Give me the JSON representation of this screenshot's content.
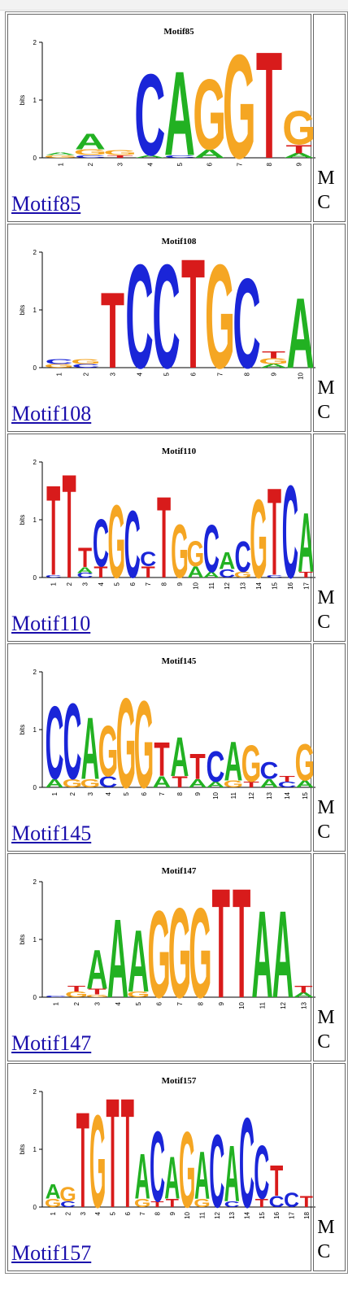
{
  "rows": [
    {
      "title": "Motif85",
      "link": "Motif85",
      "side": [
        "M",
        "C"
      ],
      "columns": [
        [
          {
            "l": "G",
            "h": 0.05
          },
          {
            "l": "A",
            "h": 0.05
          }
        ],
        [
          {
            "l": "A",
            "h": 0.28
          },
          {
            "l": "G",
            "h": 0.1
          },
          {
            "l": "C",
            "h": 0.05
          }
        ],
        [
          {
            "l": "G",
            "h": 0.08
          },
          {
            "l": "T",
            "h": 0.05
          }
        ],
        [
          {
            "l": "C",
            "h": 1.45
          },
          {
            "l": "A",
            "h": 0.05
          }
        ],
        [
          {
            "l": "A",
            "h": 1.5
          },
          {
            "l": "C",
            "h": 0.05
          }
        ],
        [
          {
            "l": "G",
            "h": 1.25
          },
          {
            "l": "A",
            "h": 0.15
          }
        ],
        [
          {
            "l": "G",
            "h": 1.85
          }
        ],
        [
          {
            "l": "T",
            "h": 1.9
          }
        ],
        [
          {
            "l": "G",
            "h": 0.6
          },
          {
            "l": "T",
            "h": 0.15
          },
          {
            "l": "A",
            "h": 0.08
          }
        ]
      ],
      "xticks": [
        "1",
        "2",
        "3",
        "4",
        "5",
        "6",
        "7",
        "8",
        "9"
      ]
    },
    {
      "title": "Motif108",
      "link": "Motif108",
      "side": [
        "M",
        "C"
      ],
      "columns": [
        [
          {
            "l": "C",
            "h": 0.08
          },
          {
            "l": "G",
            "h": 0.06
          }
        ],
        [
          {
            "l": "G",
            "h": 0.08
          },
          {
            "l": "C",
            "h": 0.06
          }
        ],
        [
          {
            "l": "T",
            "h": 1.35
          }
        ],
        [
          {
            "l": "C",
            "h": 1.85
          }
        ],
        [
          {
            "l": "C",
            "h": 1.85
          }
        ],
        [
          {
            "l": "T",
            "h": 1.95
          }
        ],
        [
          {
            "l": "G",
            "h": 1.85
          }
        ],
        [
          {
            "l": "C",
            "h": 1.6
          }
        ],
        [
          {
            "l": "T",
            "h": 0.12
          },
          {
            "l": "G",
            "h": 0.1
          },
          {
            "l": "A",
            "h": 0.06
          }
        ],
        [
          {
            "l": "A",
            "h": 1.25
          }
        ]
      ],
      "xticks": [
        "1",
        "2",
        "3",
        "4",
        "5",
        "6",
        "7",
        "8",
        "9",
        "10"
      ]
    },
    {
      "title": "Motif110",
      "link": "Motif110",
      "side": [
        "M",
        "C"
      ],
      "columns": [
        [
          {
            "l": "T",
            "h": 1.6
          },
          {
            "l": "C",
            "h": 0.05
          }
        ],
        [
          {
            "l": "T",
            "h": 1.85
          }
        ],
        [
          {
            "l": "T",
            "h": 0.35
          },
          {
            "l": "A",
            "h": 0.1
          },
          {
            "l": "C",
            "h": 0.08
          }
        ],
        [
          {
            "l": "C",
            "h": 0.85
          },
          {
            "l": "T",
            "h": 0.2
          }
        ],
        [
          {
            "l": "G",
            "h": 1.3
          }
        ],
        [
          {
            "l": "C",
            "h": 1.2
          }
        ],
        [
          {
            "l": "C",
            "h": 0.25
          },
          {
            "l": "T",
            "h": 0.2
          }
        ],
        [
          {
            "l": "T",
            "h": 1.45
          }
        ],
        [
          {
            "l": "G",
            "h": 0.95
          }
        ],
        [
          {
            "l": "G",
            "h": 0.45
          },
          {
            "l": "A",
            "h": 0.2
          }
        ],
        [
          {
            "l": "C",
            "h": 0.85
          },
          {
            "l": "A",
            "h": 0.1
          }
        ],
        [
          {
            "l": "A",
            "h": 0.3
          },
          {
            "l": "C",
            "h": 0.15
          }
        ],
        [
          {
            "l": "C",
            "h": 0.55
          },
          {
            "l": "G",
            "h": 0.1
          }
        ],
        [
          {
            "l": "G",
            "h": 1.4
          }
        ],
        [
          {
            "l": "T",
            "h": 1.55
          },
          {
            "l": "C",
            "h": 0.05
          }
        ],
        [
          {
            "l": "C",
            "h": 1.65
          }
        ],
        [
          {
            "l": "A",
            "h": 1.05
          },
          {
            "l": "T",
            "h": 0.1
          }
        ]
      ],
      "xticks": [
        "1",
        "2",
        "3",
        "4",
        "5",
        "6",
        "7",
        "8",
        "9",
        "10",
        "11",
        "12",
        "13",
        "14",
        "15",
        "16",
        "17"
      ]
    },
    {
      "title": "Motif145",
      "link": "Motif145",
      "side": [
        "M",
        "C"
      ],
      "columns": [
        [
          {
            "l": "C",
            "h": 1.3
          },
          {
            "l": "A",
            "h": 0.15
          }
        ],
        [
          {
            "l": "C",
            "h": 1.35
          },
          {
            "l": "G",
            "h": 0.15
          }
        ],
        [
          {
            "l": "A",
            "h": 1.1
          },
          {
            "l": "G",
            "h": 0.15
          }
        ],
        [
          {
            "l": "G",
            "h": 0.9
          },
          {
            "l": "C",
            "h": 0.2
          }
        ],
        [
          {
            "l": "G",
            "h": 1.6
          }
        ],
        [
          {
            "l": "G",
            "h": 1.55
          }
        ],
        [
          {
            "l": "T",
            "h": 0.6
          },
          {
            "l": "A",
            "h": 0.2
          }
        ],
        [
          {
            "l": "A",
            "h": 0.7
          },
          {
            "l": "T",
            "h": 0.2
          }
        ],
        [
          {
            "l": "T",
            "h": 0.45
          },
          {
            "l": "A",
            "h": 0.15
          }
        ],
        [
          {
            "l": "C",
            "h": 0.55
          },
          {
            "l": "A",
            "h": 0.1
          }
        ],
        [
          {
            "l": "A",
            "h": 0.7
          },
          {
            "l": "G",
            "h": 0.12
          }
        ],
        [
          {
            "l": "G",
            "h": 0.65
          },
          {
            "l": "T",
            "h": 0.1
          }
        ],
        [
          {
            "l": "C",
            "h": 0.3
          },
          {
            "l": "A",
            "h": 0.15
          }
        ],
        [
          {
            "l": "C",
            "h": 0.1
          },
          {
            "l": "T",
            "h": 0.1
          }
        ],
        [
          {
            "l": "G",
            "h": 0.65
          },
          {
            "l": "A",
            "h": 0.12
          }
        ]
      ],
      "xticks": [
        "1",
        "2",
        "3",
        "4",
        "5",
        "6",
        "7",
        "8",
        "9",
        "10",
        "11",
        "12",
        "13",
        "14",
        "15"
      ]
    },
    {
      "title": "Motif147",
      "link": "Motif147",
      "side": [
        "M",
        "C"
      ],
      "columns": [
        [
          {
            "l": "C",
            "h": 0.02
          }
        ],
        [
          {
            "l": "G",
            "h": 0.1
          },
          {
            "l": "T",
            "h": 0.1
          }
        ],
        [
          {
            "l": "A",
            "h": 0.7
          },
          {
            "l": "T",
            "h": 0.1
          },
          {
            "l": "G",
            "h": 0.05
          }
        ],
        [
          {
            "l": "A",
            "h": 1.4
          }
        ],
        [
          {
            "l": "A",
            "h": 1.1
          },
          {
            "l": "G",
            "h": 0.1
          }
        ],
        [
          {
            "l": "G",
            "h": 1.55
          }
        ],
        [
          {
            "l": "G",
            "h": 1.6
          }
        ],
        [
          {
            "l": "G",
            "h": 1.6
          }
        ],
        [
          {
            "l": "T",
            "h": 1.95
          }
        ],
        [
          {
            "l": "T",
            "h": 1.95
          }
        ],
        [
          {
            "l": "A",
            "h": 1.55
          }
        ],
        [
          {
            "l": "A",
            "h": 1.55
          }
        ],
        [
          {
            "l": "T",
            "h": 0.12
          },
          {
            "l": "A",
            "h": 0.08
          }
        ]
      ],
      "xticks": [
        "1",
        "2",
        "3",
        "4",
        "5",
        "6",
        "7",
        "8",
        "9",
        "10",
        "11",
        "12",
        "13"
      ]
    },
    {
      "title": "Motif157",
      "link": "Motif157",
      "side": [
        "M",
        "C"
      ],
      "columns": [
        [
          {
            "l": "A",
            "h": 0.25
          },
          {
            "l": "G",
            "h": 0.15
          }
        ],
        [
          {
            "l": "G",
            "h": 0.25
          },
          {
            "l": "C",
            "h": 0.1
          }
        ],
        [
          {
            "l": "T",
            "h": 1.7
          }
        ],
        [
          {
            "l": "G",
            "h": 1.65
          }
        ],
        [
          {
            "l": "T",
            "h": 1.95
          }
        ],
        [
          {
            "l": "T",
            "h": 1.95
          }
        ],
        [
          {
            "l": "A",
            "h": 0.8
          },
          {
            "l": "G",
            "h": 0.15
          }
        ],
        [
          {
            "l": "C",
            "h": 1.25
          },
          {
            "l": "T",
            "h": 0.1
          }
        ],
        [
          {
            "l": "A",
            "h": 0.75
          },
          {
            "l": "T",
            "h": 0.15
          }
        ],
        [
          {
            "l": "G",
            "h": 1.35
          }
        ],
        [
          {
            "l": "A",
            "h": 0.85
          },
          {
            "l": "G",
            "h": 0.15
          }
        ],
        [
          {
            "l": "C",
            "h": 1.3
          }
        ],
        [
          {
            "l": "A",
            "h": 1.0
          },
          {
            "l": "C",
            "h": 0.1
          }
        ],
        [
          {
            "l": "C",
            "h": 1.6
          }
        ],
        [
          {
            "l": "C",
            "h": 0.95
          },
          {
            "l": "T",
            "h": 0.15
          }
        ],
        [
          {
            "l": "T",
            "h": 0.55
          },
          {
            "l": "C",
            "h": 0.2
          }
        ],
        [
          {
            "l": "C",
            "h": 0.25
          }
        ],
        [
          {
            "l": "T",
            "h": 0.2
          }
        ]
      ],
      "xticks": [
        "1",
        "2",
        "3",
        "4",
        "5",
        "6",
        "7",
        "8",
        "9",
        "10",
        "11",
        "12",
        "13",
        "14",
        "15",
        "16",
        "17",
        "18"
      ]
    }
  ],
  "logo_axis": {
    "ylabel": "bits",
    "yticks": [
      "0",
      "1",
      "2"
    ]
  },
  "colors": {
    "A": "#22b122",
    "C": "#1a25d8",
    "G": "#f5a623",
    "T": "#d81b1b"
  }
}
